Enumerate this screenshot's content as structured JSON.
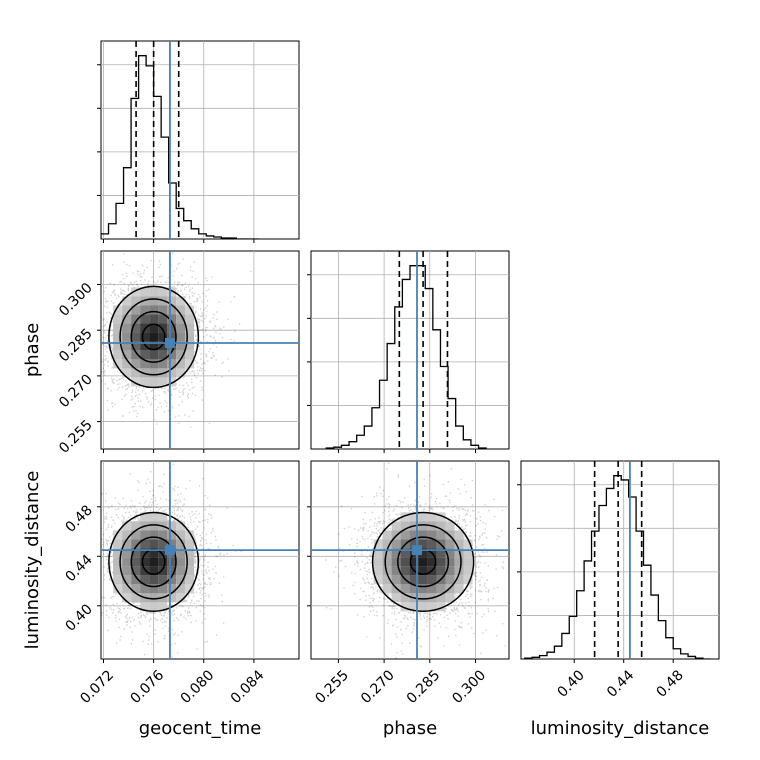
{
  "chart_data": {
    "type": "corner",
    "parameters": [
      "geocent_time",
      "phase",
      "luminosity_distance"
    ],
    "axis_labels": {
      "geocent_time": "geocent_time",
      "phase": "phase",
      "luminosity_distance": "luminosity_distance"
    },
    "ranges": {
      "geocent_time": [
        0.0718,
        0.0876
      ],
      "phase": [
        0.246,
        0.311
      ],
      "luminosity_distance": [
        0.357,
        0.517
      ]
    },
    "ticks": {
      "geocent_time": [
        0.072,
        0.076,
        0.08,
        0.084
      ],
      "phase": [
        0.255,
        0.27,
        0.285,
        0.3
      ],
      "luminosity_distance": [
        0.4,
        0.44,
        0.48
      ]
    },
    "tick_labels": {
      "geocent_time": [
        "0.072",
        "0.076",
        "0.080",
        "0.084"
      ],
      "phase": [
        "0.255",
        "0.270",
        "0.285",
        "0.300"
      ],
      "luminosity_distance": [
        "0.40",
        "0.44",
        "0.48"
      ]
    },
    "truths": {
      "geocent_time": 0.0773,
      "phase": 0.2808,
      "luminosity_distance": 0.445
    },
    "quantiles": {
      "geocent_time": [
        0.0746,
        0.076,
        0.078
      ],
      "phase": [
        0.275,
        0.2828,
        0.2908
      ],
      "luminosity_distance": [
        0.4165,
        0.4355,
        0.4545
      ]
    },
    "histograms": {
      "geocent_time": {
        "edges": [
          0.0718,
          0.0724,
          0.073,
          0.0736,
          0.0742,
          0.0748,
          0.0754,
          0.076,
          0.0766,
          0.0772,
          0.0778,
          0.0784,
          0.079,
          0.0796,
          0.0802,
          0.0808,
          0.0814,
          0.082,
          0.0826,
          0.0832,
          0.0838,
          0.0844
        ],
        "counts": [
          5,
          15,
          35,
          70,
          138,
          180,
          170,
          140,
          100,
          55,
          30,
          18,
          10,
          5,
          3,
          2,
          1,
          1,
          0,
          0,
          0
        ]
      },
      "phase": {
        "edges": [
          0.251,
          0.2535,
          0.256,
          0.2585,
          0.261,
          0.2635,
          0.266,
          0.2685,
          0.271,
          0.2735,
          0.276,
          0.2785,
          0.281,
          0.2835,
          0.286,
          0.2885,
          0.291,
          0.2935,
          0.296,
          0.2985,
          0.301,
          0.3035
        ],
        "counts": [
          1,
          2,
          4,
          8,
          15,
          25,
          45,
          75,
          115,
          155,
          185,
          200,
          200,
          175,
          130,
          90,
          55,
          25,
          10,
          4,
          1
        ]
      },
      "luminosity_distance": {
        "edges": [
          0.36,
          0.366,
          0.372,
          0.378,
          0.384,
          0.39,
          0.396,
          0.402,
          0.408,
          0.414,
          0.42,
          0.426,
          0.432,
          0.438,
          0.444,
          0.45,
          0.456,
          0.462,
          0.468,
          0.474,
          0.48,
          0.486,
          0.492,
          0.498,
          0.504,
          0.51
        ],
        "counts": [
          1,
          2,
          4,
          8,
          15,
          30,
          50,
          80,
          115,
          150,
          180,
          200,
          215,
          210,
          190,
          150,
          110,
          75,
          45,
          25,
          12,
          6,
          3,
          1,
          0
        ]
      }
    },
    "series_color": "#4682b4",
    "contour_color": "#000000",
    "grid": true
  }
}
